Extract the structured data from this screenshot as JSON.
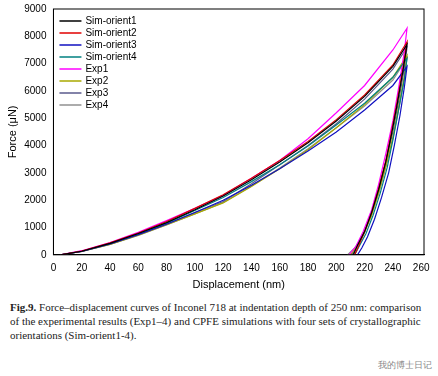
{
  "chart_data": {
    "type": "line",
    "xlabel": "Displacement (nm)",
    "ylabel": "Force (μN)",
    "xlim": [
      0,
      262
    ],
    "xticks": [
      0,
      20,
      40,
      60,
      80,
      100,
      120,
      140,
      160,
      180,
      200,
      220,
      240,
      260
    ],
    "ylim": [
      0,
      9000
    ],
    "yticks": [
      0,
      1000,
      2000,
      3000,
      4000,
      5000,
      6000,
      7000,
      8000,
      9000
    ],
    "grid": false,
    "legend": "upper left",
    "series": [
      {
        "name": "Sim-orient1",
        "color": "#000000",
        "x": [
          5,
          20,
          40,
          60,
          80,
          100,
          120,
          140,
          160,
          180,
          200,
          220,
          240,
          250,
          247,
          243,
          239,
          235,
          230,
          225,
          220,
          215,
          212
        ],
        "values": [
          0,
          130,
          420,
          780,
          1180,
          1650,
          2150,
          2750,
          3400,
          4100,
          4900,
          5800,
          6900,
          7700,
          6700,
          5500,
          4400,
          3400,
          2400,
          1550,
          850,
          350,
          0
        ]
      },
      {
        "name": "Sim-orient2",
        "color": "#e00000",
        "x": [
          5,
          20,
          40,
          60,
          80,
          100,
          120,
          140,
          160,
          180,
          200,
          220,
          240,
          250,
          247,
          243,
          239,
          235,
          230,
          225,
          220,
          216,
          213
        ],
        "values": [
          0,
          140,
          440,
          800,
          1220,
          1700,
          2200,
          2800,
          3450,
          4150,
          4950,
          5850,
          6950,
          7800,
          6800,
          5600,
          4500,
          3450,
          2450,
          1550,
          850,
          350,
          0
        ]
      },
      {
        "name": "Sim-orient3",
        "color": "#1010c0",
        "x": [
          5,
          20,
          40,
          60,
          80,
          100,
          120,
          140,
          160,
          180,
          200,
          220,
          240,
          250,
          248,
          245,
          241,
          237,
          232,
          227,
          222,
          218,
          215
        ],
        "values": [
          0,
          120,
          400,
          740,
          1120,
          1550,
          2000,
          2550,
          3150,
          3800,
          4500,
          5300,
          6200,
          6900,
          6100,
          5100,
          4000,
          3000,
          2100,
          1300,
          650,
          250,
          0
        ]
      },
      {
        "name": "Sim-orient4",
        "color": "#008080",
        "x": [
          5,
          20,
          40,
          60,
          80,
          100,
          120,
          140,
          160,
          180,
          200,
          220,
          240,
          250,
          248,
          244,
          240,
          236,
          231,
          226,
          221,
          216,
          213
        ],
        "values": [
          0,
          130,
          410,
          770,
          1160,
          1620,
          2100,
          2680,
          3300,
          3980,
          4750,
          5550,
          6500,
          7200,
          6400,
          5300,
          4200,
          3200,
          2250,
          1450,
          780,
          300,
          0
        ]
      },
      {
        "name": "Exp1",
        "color": "#ff00ff",
        "x": [
          5,
          20,
          40,
          60,
          80,
          100,
          120,
          140,
          160,
          180,
          200,
          220,
          240,
          250,
          248,
          244,
          240,
          235,
          230,
          225,
          219,
          214,
          209
        ],
        "values": [
          0,
          150,
          450,
          820,
          1250,
          1700,
          2180,
          2800,
          3450,
          4250,
          5200,
          6200,
          7500,
          8300,
          7400,
          6100,
          4900,
          3700,
          2600,
          1650,
          850,
          320,
          0
        ]
      },
      {
        "name": "Exp2",
        "color": "#a8a800",
        "x": [
          5,
          20,
          40,
          60,
          80,
          100,
          120,
          140,
          160,
          180,
          200,
          220,
          240,
          250,
          248,
          244,
          240,
          235,
          230,
          225,
          219,
          214,
          210
        ],
        "values": [
          0,
          120,
          380,
          720,
          1100,
          1500,
          1900,
          2500,
          3150,
          3850,
          4650,
          5500,
          6500,
          7300,
          6500,
          5400,
          4300,
          3250,
          2300,
          1450,
          720,
          280,
          0
        ]
      },
      {
        "name": "Exp3",
        "color": "#5a5a8c",
        "x": [
          5,
          20,
          40,
          60,
          80,
          100,
          120,
          140,
          160,
          180,
          200,
          220,
          240,
          250,
          248,
          244,
          240,
          235,
          230,
          225,
          220,
          215,
          211
        ],
        "values": [
          0,
          125,
          390,
          740,
          1130,
          1550,
          1950,
          2600,
          3300,
          4000,
          4800,
          5700,
          6800,
          7600,
          6800,
          5600,
          4500,
          3400,
          2400,
          1550,
          820,
          330,
          0
        ]
      },
      {
        "name": "Exp4",
        "color": "#909090",
        "x": [
          5,
          20,
          40,
          60,
          80,
          100,
          120,
          140,
          160,
          180,
          200,
          220,
          240,
          250,
          248,
          244,
          240,
          235,
          230,
          224,
          218,
          213,
          208
        ],
        "values": [
          0,
          120,
          380,
          710,
          1090,
          1500,
          1920,
          2520,
          3180,
          3880,
          4650,
          5450,
          6400,
          7200,
          6400,
          5300,
          4250,
          3200,
          2250,
          1350,
          650,
          250,
          0
        ]
      }
    ]
  },
  "caption_label": "Fig.9.",
  "caption": "Force–displacement curves of Inconel 718 at indentation depth of 250 nm: comparison of the experimental results (Exp1–4) and CPFE simulations with four sets of crystallographic orientations (Sim-orient1-4).",
  "watermark": "我的博士日记"
}
